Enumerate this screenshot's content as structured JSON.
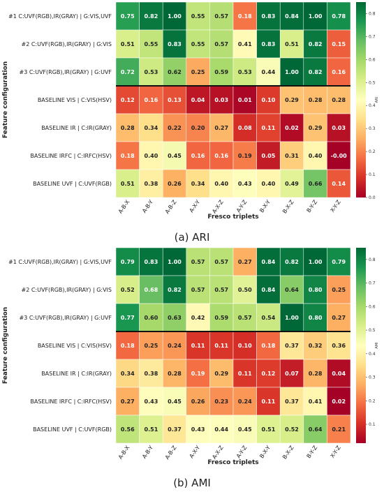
{
  "chart_data": [
    {
      "type": "heatmap",
      "caption": "(a) ARI",
      "xlabel": "Fresco triplets",
      "ylabel": "Feature configuration",
      "colorbar_label": "ARI",
      "colorbar_ticks": [
        "0.8",
        "0.7",
        "0.6",
        "0.5",
        "0.4",
        "0.3",
        "0.2",
        "0.1",
        "0.0"
      ],
      "colorbar_range": [
        0.0,
        0.85
      ],
      "colors": {
        "low": "#a50026",
        "mid": "#ffffbf",
        "high": "#006837"
      },
      "rows": [
        "#1 C:UVF(RGB),IR(GRAY) | G:VIS,UVF",
        "#2 C:UVF(RGB),IR(GRAY) | G:VIS",
        "#3 C:UVF(RGB),IR(GRAY) | G:UVF",
        "BASELINE VIS | C:VIS(HSV)",
        "BASELINE IR | C:IR(GRAY)",
        "BASELINE IRFC | C:IRFC(HSV)",
        "BASELINE UVF | C:UVF(RGB)"
      ],
      "columns": [
        "A-B-X",
        "A-B-Y",
        "A-B-Z",
        "A-X-Y",
        "A-X-Z",
        "A-Y-Z",
        "B-X-Y",
        "B-X-Z",
        "B-Y-Z",
        "X-Y-Z"
      ],
      "labels": [
        [
          "0.75",
          "0.82",
          "1.00",
          "0.55",
          "0.57",
          "0.18",
          "0.83",
          "0.84",
          "1.00",
          "0.78"
        ],
        [
          "0.51",
          "0.55",
          "0.83",
          "0.55",
          "0.57",
          "0.41",
          "0.83",
          "0.51",
          "0.82",
          "0.15"
        ],
        [
          "0.72",
          "0.53",
          "0.62",
          "0.25",
          "0.59",
          "0.53",
          "0.44",
          "1.00",
          "0.82",
          "0.16"
        ],
        [
          "0.12",
          "0.16",
          "0.13",
          "0.04",
          "0.03",
          "0.01",
          "0.10",
          "0.29",
          "0.28",
          "0.28"
        ],
        [
          "0.28",
          "0.34",
          "0.22",
          "0.20",
          "0.27",
          "0.08",
          "0.11",
          "0.02",
          "0.29",
          "0.03"
        ],
        [
          "0.18",
          "0.40",
          "0.45",
          "0.16",
          "0.16",
          "0.19",
          "0.05",
          "0.31",
          "0.40",
          "-0.00"
        ],
        [
          "0.51",
          "0.38",
          "0.26",
          "0.34",
          "0.40",
          "0.43",
          "0.40",
          "0.49",
          "0.66",
          "0.14"
        ]
      ],
      "separator_after_row": 3
    },
    {
      "type": "heatmap",
      "caption": "(b) AMI",
      "xlabel": "Fresco triplets",
      "ylabel": "Feature configuration",
      "colorbar_label": "AMI",
      "colorbar_ticks": [
        "0.8",
        "0.7",
        "0.6",
        "0.5",
        "0.4",
        "0.3",
        "0.2",
        "0.1"
      ],
      "colorbar_range": [
        0.02,
        0.85
      ],
      "colors": {
        "low": "#a50026",
        "mid": "#ffffbf",
        "high": "#006837"
      },
      "rows": [
        "#1 C:UVF(RGB),IR(GRAY) | G:VIS,UVF",
        "#2 C:UVF(RGB),IR(GRAY) | G:VIS",
        "#3 C:UVF(RGB),IR(GRAY) | G:UVF",
        "BASELINE VIS | C:VIS(HSV)",
        "BASELINE IR | C:IR(GRAY)",
        "BASELINE IRFC | C:IRFC(HSV)",
        "BASELINE UVF | C:UVF(RGB)"
      ],
      "columns": [
        "A-B-X",
        "A-B-Y",
        "A-B-Z",
        "A-X-Y",
        "A-X-Z",
        "A-Y-Z",
        "B-X-Y",
        "B-X-Z",
        "B-Y-Z",
        "X-Y-Z"
      ],
      "labels": [
        [
          "0.79",
          "0.83",
          "1.00",
          "0.57",
          "0.57",
          "0.27",
          "0.84",
          "0.82",
          "1.00",
          "0.79"
        ],
        [
          "0.52",
          "0.68",
          "0.82",
          "0.57",
          "0.57",
          "0.50",
          "0.84",
          "0.64",
          "0.80",
          "0.25"
        ],
        [
          "0.77",
          "0.60",
          "0.63",
          "0.42",
          "0.59",
          "0.57",
          "0.54",
          "1.00",
          "0.80",
          "0.27"
        ],
        [
          "0.18",
          "0.25",
          "0.24",
          "0.11",
          "0.11",
          "0.10",
          "0.18",
          "0.37",
          "0.32",
          "0.36"
        ],
        [
          "0.34",
          "0.38",
          "0.28",
          "0.19",
          "0.29",
          "0.11",
          "0.12",
          "0.07",
          "0.28",
          "0.04"
        ],
        [
          "0.27",
          "0.43",
          "0.45",
          "0.26",
          "0.23",
          "0.24",
          "0.11",
          "0.37",
          "0.41",
          "0.02"
        ],
        [
          "0.56",
          "0.51",
          "0.37",
          "0.43",
          "0.44",
          "0.45",
          "0.51",
          "0.52",
          "0.64",
          "0.21"
        ]
      ],
      "separator_after_row": 3
    }
  ]
}
